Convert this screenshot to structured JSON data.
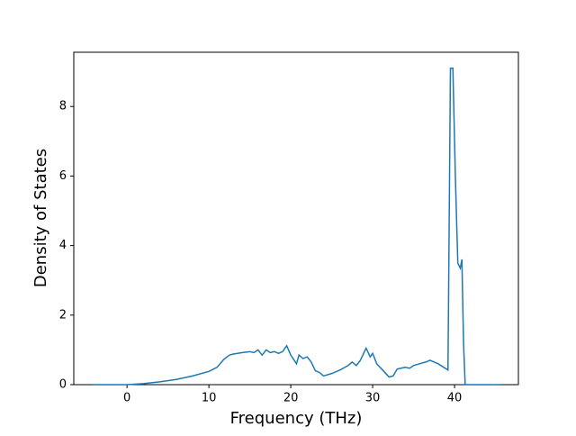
{
  "chart_data": {
    "type": "line",
    "xlabel": "Frequency (THz)",
    "ylabel": "Density of States",
    "xlim": [
      -6.5,
      47.8
    ],
    "ylim": [
      0,
      9.56
    ],
    "xticks": [
      0,
      10,
      20,
      30,
      40
    ],
    "yticks": [
      0,
      2,
      4,
      6,
      8
    ],
    "series": [
      {
        "color": "#1f77b4",
        "x": [
          -4.2,
          0,
          2,
          4,
          6,
          8,
          10,
          11,
          11.8,
          12.5,
          13,
          14,
          15,
          15.5,
          16,
          16.5,
          17,
          17.5,
          18,
          18.5,
          19,
          19.5,
          20,
          20.7,
          21,
          21.5,
          22,
          22.5,
          23,
          23.5,
          24,
          25,
          26,
          27,
          27.5,
          28,
          28.5,
          29.2,
          29.7,
          30,
          30.5,
          31.3,
          32,
          32.5,
          33,
          34,
          34.5,
          35,
          36,
          36.5,
          37,
          38,
          39.2,
          39.5,
          39.8,
          40.1,
          40.4,
          40.7,
          40.9,
          41.1,
          41.3,
          45.5
        ],
        "values": [
          0,
          0,
          0.03,
          0.08,
          0.15,
          0.25,
          0.38,
          0.5,
          0.72,
          0.85,
          0.88,
          0.92,
          0.95,
          0.92,
          1.0,
          0.85,
          1.0,
          0.92,
          0.95,
          0.9,
          0.95,
          1.12,
          0.85,
          0.6,
          0.85,
          0.75,
          0.8,
          0.65,
          0.4,
          0.35,
          0.25,
          0.32,
          0.42,
          0.55,
          0.65,
          0.55,
          0.7,
          1.05,
          0.8,
          0.9,
          0.6,
          0.4,
          0.22,
          0.25,
          0.45,
          0.5,
          0.47,
          0.55,
          0.62,
          0.65,
          0.7,
          0.6,
          0.42,
          9.1,
          9.1,
          6.0,
          3.5,
          3.35,
          3.6,
          1.2,
          0,
          0
        ]
      }
    ]
  }
}
